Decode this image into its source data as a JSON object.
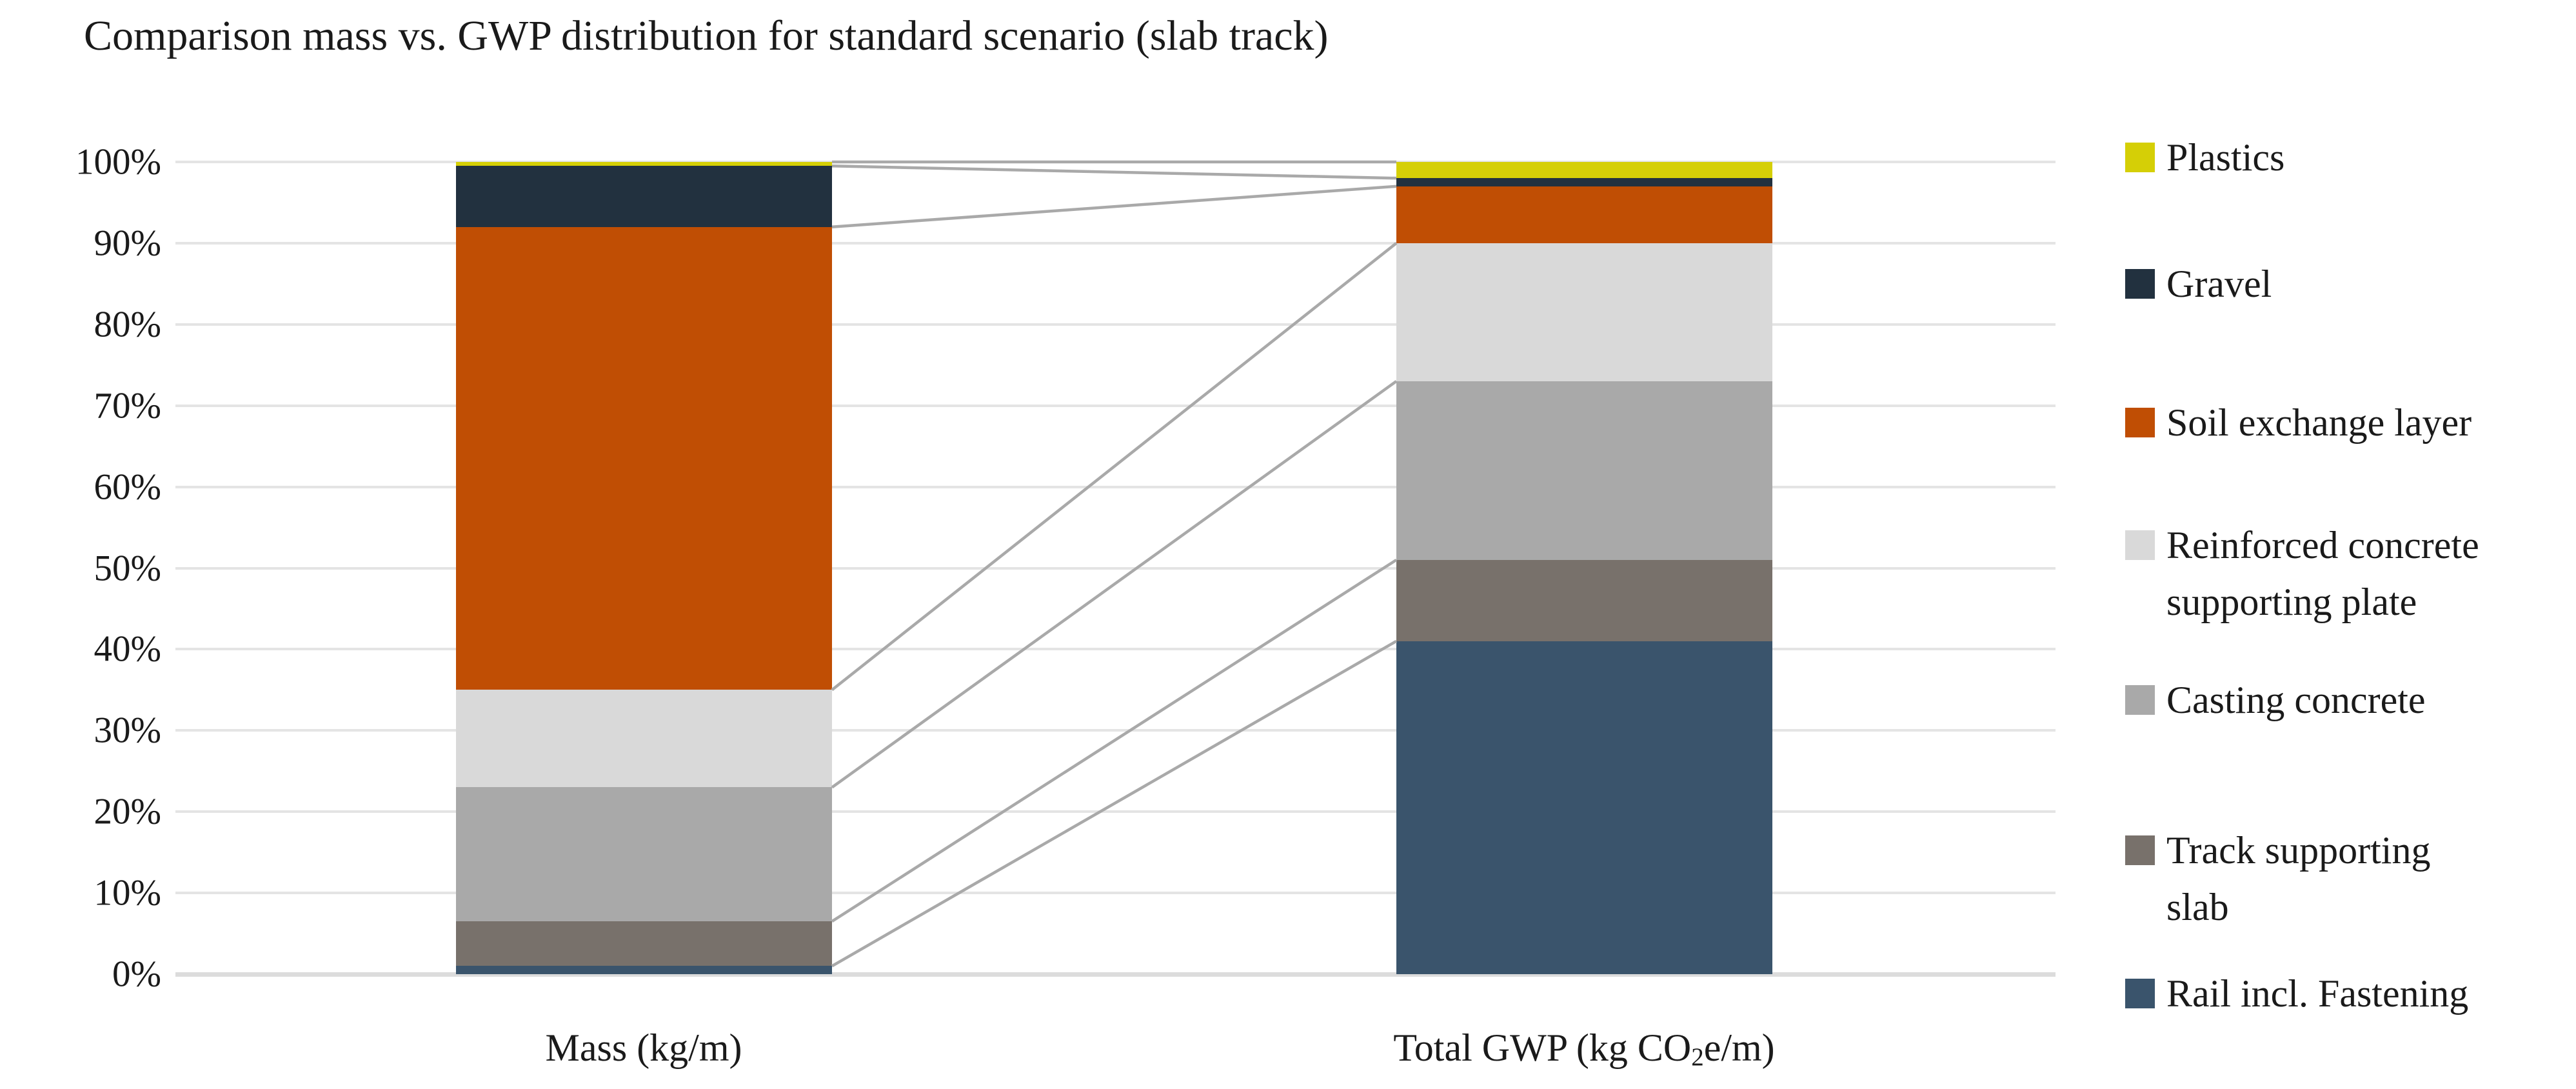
{
  "title": "Comparison mass vs. GWP distribution for standard scenario (slab track)",
  "y_axis": {
    "tick_labels": [
      "100%",
      "90%",
      "80%",
      "70%",
      "60%",
      "50%",
      "40%",
      "30%",
      "20%",
      "10%",
      "0%"
    ]
  },
  "x_axis": {
    "mass_label": "Mass (kg/m)",
    "gwp_label_pre": "Total GWP (kg CO",
    "gwp_label_sub": "2",
    "gwp_label_post": "e/m)"
  },
  "legend": {
    "items": [
      {
        "label": "Plastics",
        "color": "#d5cf06"
      },
      {
        "label": "Gravel",
        "color": "#22313f"
      },
      {
        "label": "Soil exchange layer",
        "color": "#c04e04"
      },
      {
        "label": "Reinforced concrete\nsupporting plate",
        "color": "#d9d9d9"
      },
      {
        "label": "Casting concrete",
        "color": "#a9a9a9"
      },
      {
        "label": "Track supporting\nslab",
        "color": "#78716b"
      },
      {
        "label": "Rail incl. Fastening",
        "color": "#3a546c"
      }
    ]
  },
  "chart_data": {
    "type": "bar",
    "subtype": "stacked-percent",
    "title": "Comparison mass vs. GWP distribution for standard scenario (slab track)",
    "categories": [
      "Mass (kg/m)",
      "Total GWP (kg CO2e/m)"
    ],
    "ylabel": "",
    "xlabel": "",
    "ylim": [
      0,
      100
    ],
    "unit": "%",
    "grid": true,
    "legend_position": "right",
    "series": [
      {
        "name": "Rail incl. Fastening",
        "color": "#3a546c",
        "values": [
          1,
          41
        ]
      },
      {
        "name": "Track supporting slab",
        "color": "#78716b",
        "values": [
          5.5,
          10
        ]
      },
      {
        "name": "Casting concrete",
        "color": "#a9a9a9",
        "values": [
          16.5,
          22
        ]
      },
      {
        "name": "Reinforced concrete supporting plate",
        "color": "#d9d9d9",
        "values": [
          12,
          17
        ]
      },
      {
        "name": "Soil exchange layer",
        "color": "#c04e04",
        "values": [
          57,
          7
        ]
      },
      {
        "name": "Gravel",
        "color": "#22313f",
        "values": [
          7.5,
          1
        ]
      },
      {
        "name": "Plastics",
        "color": "#d5cf06",
        "values": [
          0.5,
          2
        ]
      }
    ],
    "connectors": [
      {
        "from": 100,
        "to": 100
      },
      {
        "from": 99.5,
        "to": 98
      },
      {
        "from": 92,
        "to": 97
      },
      {
        "from": 35,
        "to": 90
      },
      {
        "from": 23,
        "to": 73
      },
      {
        "from": 6.5,
        "to": 51
      },
      {
        "from": 1,
        "to": 41
      }
    ]
  },
  "colors": {
    "gridline": "#e4e4e4",
    "baseline": "#dcdcdc",
    "connector": "#a9a9a9",
    "text": "#1a1a1a"
  }
}
